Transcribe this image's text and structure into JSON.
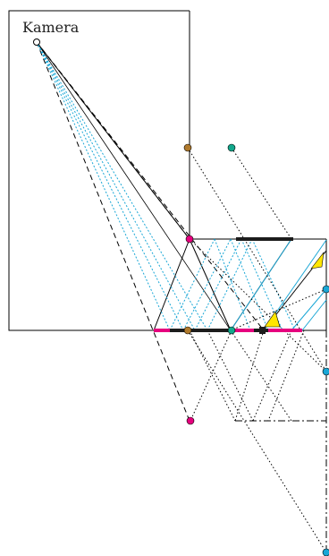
{
  "labels": {
    "camera": "Kamera"
  },
  "colors": {
    "line": "#000000",
    "ray_blue": "#1aa7d6",
    "magenta": "#e6007e",
    "dark_bar": "#1c1c1c",
    "brown_point": "#b07a2c",
    "teal_point": "#12a88c",
    "blue_point": "#1aa7d6",
    "highlight": "#ffe600"
  },
  "icons": {
    "camera_point": "open-circle",
    "points": "filled-circle",
    "triangles": "filled-triangle"
  }
}
